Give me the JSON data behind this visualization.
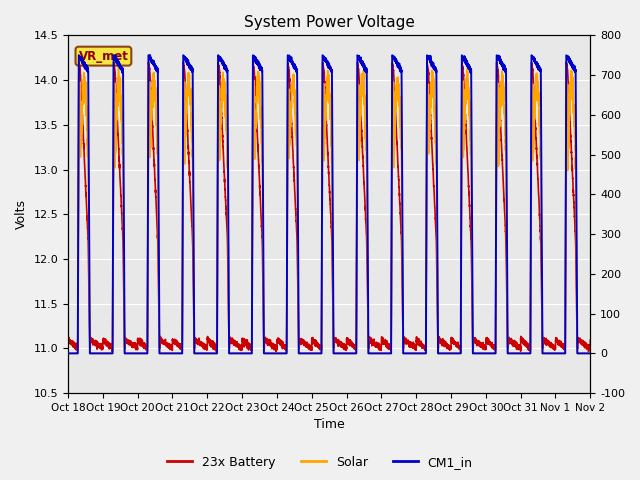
{
  "title": "System Power Voltage",
  "xlabel": "Time",
  "ylabel": "Volts",
  "ylim_left": [
    10.5,
    14.5
  ],
  "ylim_right": [
    -100,
    800
  ],
  "fig_facecolor": "#f0f0f0",
  "plot_facecolor": "#e8e8e8",
  "annotation_text": "VR_met",
  "annotation_bg": "#f5e642",
  "annotation_border": "#8b4513",
  "annotation_text_color": "#8b0000",
  "xtick_labels": [
    "Oct 18",
    "Oct 19",
    "Oct 20",
    "Oct 21",
    "Oct 22",
    "Oct 23",
    "Oct 24",
    "Oct 25",
    "Oct 26",
    "Oct 27",
    "Oct 28",
    "Oct 29",
    "Oct 30",
    "Oct 31",
    "Nov 1",
    "Nov 2"
  ],
  "ytick_left": [
    10.5,
    11.0,
    11.5,
    12.0,
    12.5,
    13.0,
    13.5,
    14.0,
    14.5
  ],
  "ytick_right": [
    -100,
    0,
    100,
    200,
    300,
    400,
    500,
    600,
    700,
    800
  ],
  "legend_labels": [
    "23x Battery",
    "Solar",
    "CM1_in"
  ],
  "colors": [
    "#cc0000",
    "#ffa500",
    "#0000cc"
  ],
  "lw": 1.2,
  "grid_color": "#ffffff",
  "num_days": 15
}
